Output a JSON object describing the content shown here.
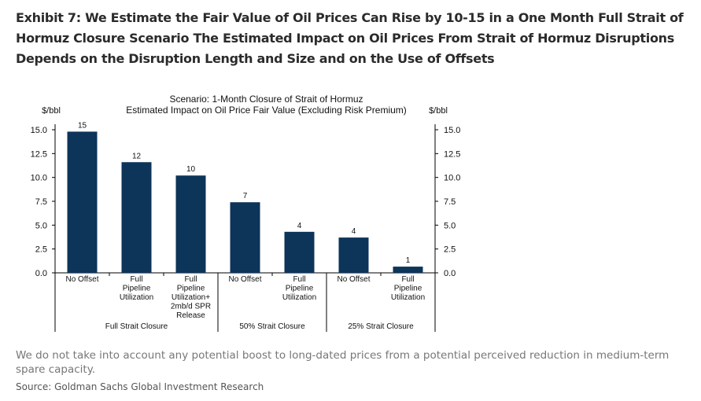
{
  "exhibit": {
    "title": "Exhibit 7: We Estimate the Fair Value of Oil Prices Can Rise by 10-15 in a One Month Full Strait of Hormuz Closure Scenario The Estimated Impact on Oil Prices From Strait of Hormuz Disruptions Depends on the Disruption Length and Size and on the Use of Offsets",
    "footnote": "We do not take into account any potential boost to long-dated prices from a potential perceived reduction in medium-term spare capacity.",
    "source": "Source: Goldman Sachs Global Investment Research"
  },
  "chart_data": {
    "type": "bar",
    "title": "Scenario: 1-Month Closure of Strait of Hormuz",
    "subtitle": "Estimated Impact on Oil Price Fair Value (Excluding Risk Premium)",
    "ylabel_left": "$/bbl",
    "ylabel_right": "$/bbl",
    "ylim": [
      0,
      15
    ],
    "yticks": [
      "0.0",
      "2.5",
      "5.0",
      "7.5",
      "10.0",
      "12.5",
      "15.0"
    ],
    "ytick_values": [
      0,
      2.5,
      5,
      7.5,
      10,
      12.5,
      15
    ],
    "bar_color": "#0d3459",
    "categories": [
      {
        "label": [
          "No Offset"
        ],
        "value": 14.8,
        "data_label": "15"
      },
      {
        "label": [
          "Full",
          "Pipeline",
          "Utilization"
        ],
        "value": 11.6,
        "data_label": "12"
      },
      {
        "label": [
          "Full",
          "Pipeline",
          "Utilization+",
          "2mb/d SPR",
          "Release"
        ],
        "value": 10.2,
        "data_label": "10"
      },
      {
        "label": [
          "No Offset"
        ],
        "value": 7.4,
        "data_label": "7"
      },
      {
        "label": [
          "Full",
          "Pipeline",
          "Utilization"
        ],
        "value": 4.3,
        "data_label": "4"
      },
      {
        "label": [
          "No Offset"
        ],
        "value": 3.7,
        "data_label": "4"
      },
      {
        "label": [
          "Full",
          "Pipeline",
          "Utilization"
        ],
        "value": 0.65,
        "data_label": "1"
      }
    ],
    "groups": [
      {
        "label": "Full Strait Closure",
        "count": 3
      },
      {
        "label": "50% Strait Closure",
        "count": 2
      },
      {
        "label": "25% Strait Closure",
        "count": 2
      }
    ]
  }
}
